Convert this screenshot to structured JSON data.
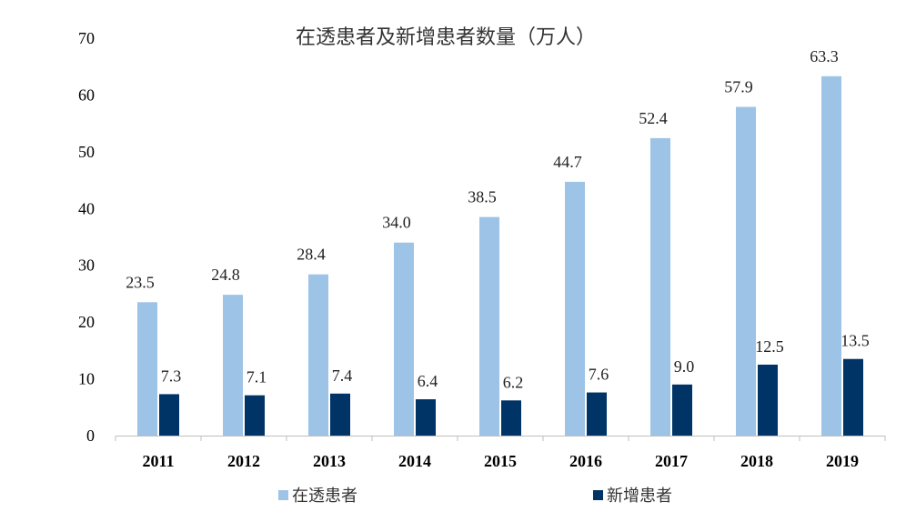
{
  "chart_data": {
    "type": "bar",
    "title": "在透患者及新增患者数量（万人）",
    "categories": [
      "2011",
      "2012",
      "2013",
      "2014",
      "2015",
      "2016",
      "2017",
      "2018",
      "2019"
    ],
    "series": [
      {
        "name": "在透患者",
        "color": "#9DC3E6",
        "values": [
          23.5,
          24.8,
          28.4,
          34.0,
          38.5,
          44.7,
          52.4,
          57.9,
          63.3
        ],
        "labels": [
          "23.5",
          "24.8",
          "28.4",
          "34.0",
          "38.5",
          "44.7",
          "52.4",
          "57.9",
          "63.3"
        ]
      },
      {
        "name": "新增患者",
        "color": "#003366",
        "values": [
          7.3,
          7.1,
          7.4,
          6.4,
          6.2,
          7.6,
          9.0,
          12.5,
          13.5
        ],
        "labels": [
          "7.3",
          "7.1",
          "7.4",
          "6.4",
          "6.2",
          "7.6",
          "9.0",
          "12.5",
          "13.5"
        ]
      }
    ],
    "ylim": [
      0,
      70
    ],
    "yticks": [
      "0",
      "10",
      "20",
      "30",
      "40",
      "50",
      "60",
      "70"
    ],
    "ytick_values": [
      0,
      10,
      20,
      30,
      40,
      50,
      60,
      70
    ],
    "grid": false,
    "legend_position": "bottom"
  }
}
